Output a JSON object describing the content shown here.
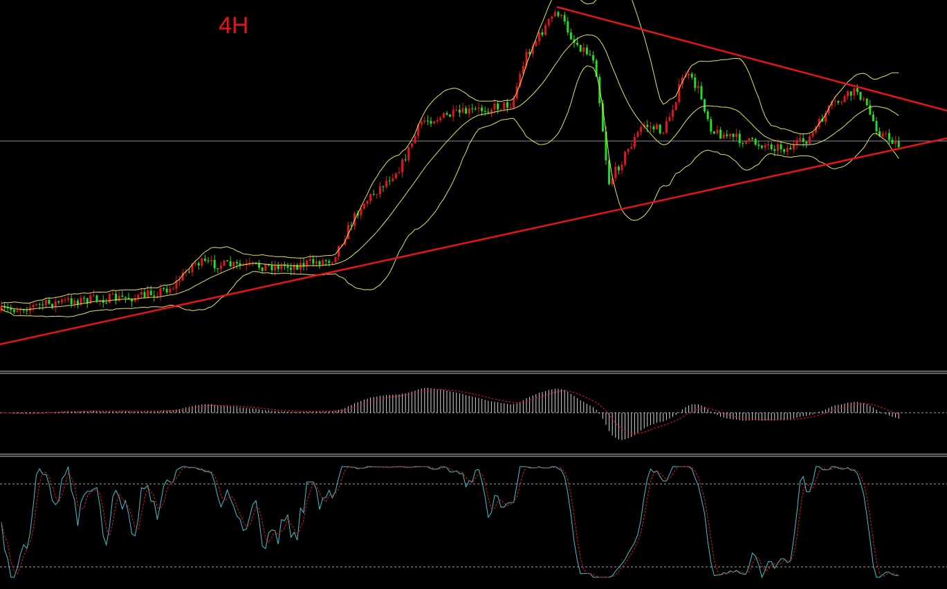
{
  "title": "4H"
}
